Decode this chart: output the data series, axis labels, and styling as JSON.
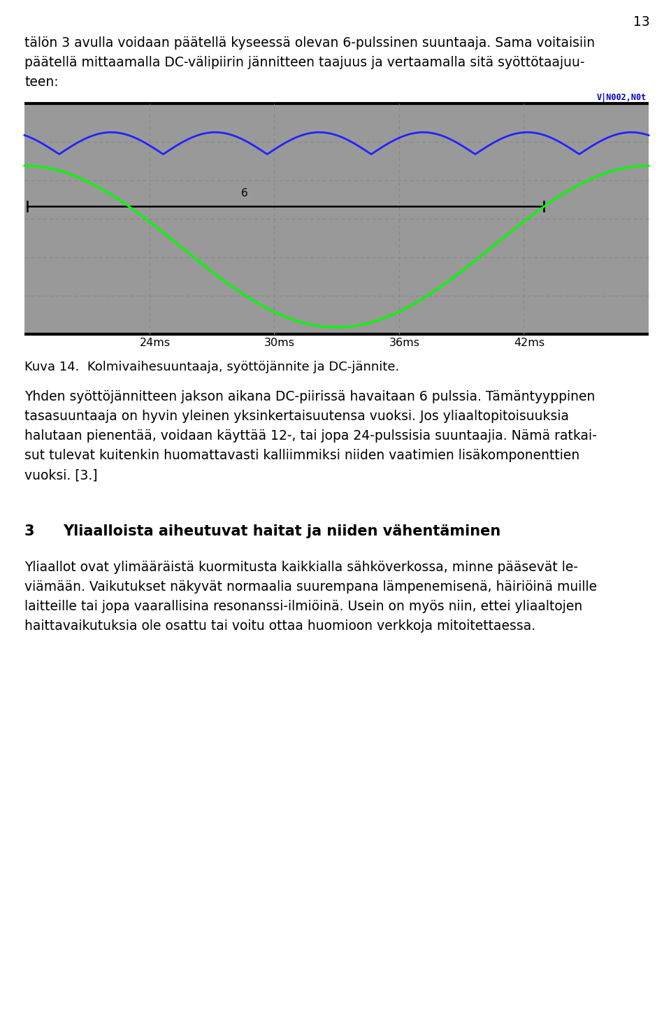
{
  "page_number": "13",
  "intro_text_line1": "tälön 3 avulla voidaan päätellä kyseessä olevan 6-pulssinen suuntaaja. Sama voitaisiin",
  "intro_text_line2": "päätellä mittaamalla DC-välipiirin jännitteen taajuus ja vertaamalla sitä syöttötaajuu-",
  "intro_text_line3": "teen:",
  "oscilloscope_bg": "#999999",
  "oscilloscope_border": "#000000",
  "grid_color": "#888888",
  "blue_wave_color": "#2222ff",
  "green_wave_color": "#00ff00",
  "scope_label": "V|N002,N0t",
  "scope_label_color": "#0000cc",
  "arrow_label": "6",
  "x_ticks": [
    "24ms",
    "30ms",
    "36ms",
    "42ms"
  ],
  "caption": "Kuva 14.  Kolmivaihesuuntaaja, syöttöjännite ja DC-jännite.",
  "para1_line1": "Yhden syöttöjännitteen jakson aikana DC-piirissä havaitaan 6 pulssia. Tämäntyyppinen",
  "para1_line2": "tasasuuntaaja on hyvin yleinen yksinkertaisuutensa vuoksi. Jos yliaaltopitoisuuksia",
  "para1_line3": "halutaan pienentää, voidaan käyttää 12-, tai jopa 24-pulssisia suuntaajia. Nämä ratkai-",
  "para1_line4": "sut tulevat kuitenkin huomattavasti kalliimmiksi niiden vaatimien lisäkomponenttien",
  "para1_line5": "vuoksi. [3.]",
  "heading_num": "3",
  "heading_text": "Yliaalloista aiheutuvat haitat ja niiden vähentäminen",
  "para2_line1": "Yliaallot ovat ylimääräistä kuormitusta kaikkialla sähköverkossa, minne pääsevät le-",
  "para2_line2": "viämään. Vaikutukset näkyvät normaalia suurempana lämpenemisenä, häiriöinä muille",
  "para2_line3": "laitteille tai jopa vaarallisina resonanssi-ilmiöinä. Usein on myös niin, ettei yliaaltojen",
  "para2_line4": "haittavaikutuksia ole osattu tai voitu ottaa huomioon verkkoja mitoitettaessa.",
  "body_fontsize": 13.5,
  "heading_fontsize": 15.0,
  "caption_fontsize": 13.0,
  "page_num_fontsize": 13.5,
  "fig_width": 9.6,
  "fig_height": 14.59
}
